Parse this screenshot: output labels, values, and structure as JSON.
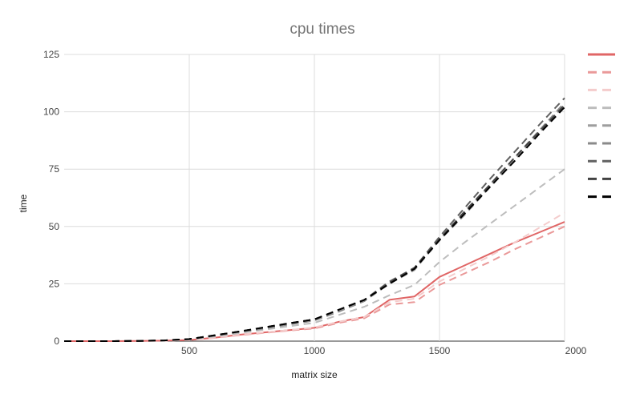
{
  "chart_data": {
    "type": "line",
    "title": "cpu times",
    "xlabel": "matrix size",
    "ylabel": "time",
    "xlim": [
      0,
      2000
    ],
    "ylim": [
      0,
      125
    ],
    "x_ticks": [
      "500",
      "1000",
      "1500",
      "2000"
    ],
    "y_ticks": [
      "0",
      "25",
      "50",
      "75",
      "100",
      "125"
    ],
    "grid": true,
    "legend_position": "right",
    "x": [
      0,
      100,
      200,
      300,
      400,
      500,
      600,
      700,
      800,
      900,
      1000,
      1100,
      1200,
      1300,
      1400,
      1500,
      1600,
      1700,
      1800,
      1900,
      2000
    ],
    "series": [
      {
        "color": "#e06666",
        "dash": "solid",
        "values": [
          0,
          0,
          0,
          0.1,
          0.2,
          0.5,
          1.5,
          2.8,
          3.8,
          4.8,
          5.8,
          8.5,
          10.5,
          18,
          19.5,
          28,
          33,
          38,
          43,
          47.5,
          52
        ]
      },
      {
        "color": "#ea9999",
        "dash": "dashed",
        "values": [
          0,
          0,
          0,
          0.1,
          0.2,
          0.5,
          1.4,
          2.6,
          3.6,
          4.6,
          5.5,
          8.0,
          10.0,
          16.0,
          17.0,
          24.5,
          29.5,
          34.5,
          40.0,
          45.0,
          50.0
        ]
      },
      {
        "color": "#f4cccc",
        "dash": "dashed",
        "values": [
          0,
          0,
          0,
          0.1,
          0.2,
          0.5,
          1.5,
          2.8,
          3.8,
          4.8,
          6.0,
          8.5,
          10.5,
          17.0,
          18.5,
          26.0,
          31.5,
          37.0,
          43.0,
          49.5,
          56.0
        ]
      },
      {
        "color": "#bdbdbd",
        "dash": "dashed",
        "values": [
          0,
          0,
          0,
          0.1,
          0.3,
          0.7,
          2.0,
          3.5,
          5.0,
          6.5,
          8.0,
          11.5,
          15.0,
          20.0,
          24.5,
          34.5,
          43.0,
          51.0,
          59.0,
          67.0,
          75.0
        ]
      },
      {
        "color": "#9e9e9e",
        "dash": "dashed",
        "values": [
          0,
          0,
          0,
          0.1,
          0.3,
          0.8,
          2.3,
          4.0,
          5.5,
          7.3,
          9.0,
          13.0,
          17.5,
          25.0,
          31.0,
          44.0,
          55.0,
          67.0,
          79.0,
          91.0,
          103.0
        ]
      },
      {
        "color": "#8a8a8a",
        "dash": "dashed",
        "values": [
          0,
          0,
          0,
          0.1,
          0.3,
          0.8,
          2.3,
          4.0,
          5.5,
          7.3,
          9.0,
          13.0,
          17.5,
          25.5,
          31.5,
          44.5,
          56.0,
          68.0,
          80.0,
          92.0,
          104.0
        ]
      },
      {
        "color": "#616161",
        "dash": "dashed",
        "values": [
          0,
          0,
          0,
          0.1,
          0.3,
          0.9,
          2.5,
          4.2,
          6.0,
          7.8,
          9.5,
          13.8,
          18.0,
          26.0,
          32.0,
          45.5,
          58.0,
          70.5,
          82.5,
          94.5,
          106.0
        ]
      },
      {
        "color": "#424242",
        "dash": "dashed",
        "values": [
          0,
          0,
          0,
          0.1,
          0.3,
          0.9,
          2.5,
          4.2,
          6.0,
          7.8,
          9.5,
          13.8,
          18.0,
          25.5,
          32.0,
          44.5,
          56.5,
          68.0,
          80.0,
          91.5,
          103.0
        ]
      },
      {
        "color": "#000000",
        "dash": "dashed",
        "values": [
          0,
          0,
          0,
          0.1,
          0.3,
          0.9,
          2.5,
          4.2,
          6.0,
          7.8,
          9.5,
          13.8,
          18.0,
          25.0,
          31.5,
          44.0,
          55.5,
          67.0,
          78.5,
          90.5,
          102.0
        ]
      }
    ]
  }
}
